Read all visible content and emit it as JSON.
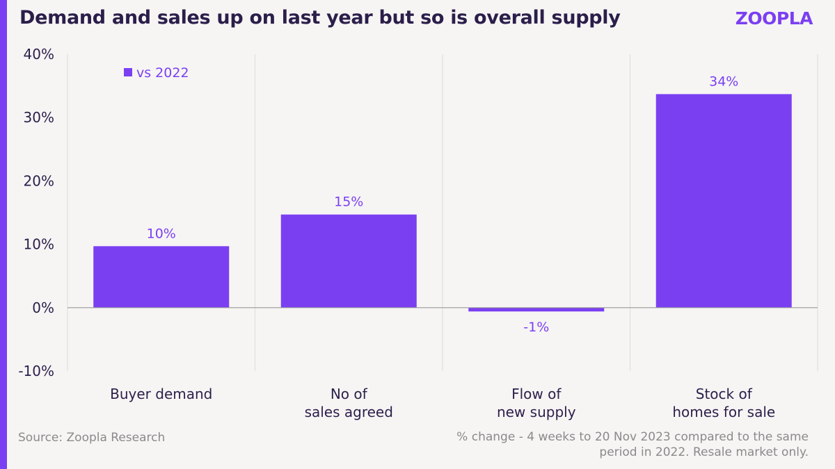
{
  "header": {
    "title": "Demand and sales up on last year but so is overall supply",
    "brand": "ZOOPLA"
  },
  "footer": {
    "source": "Source: Zoopla Research",
    "note": "% change - 4 weeks to 20 Nov 2023 compared to the same period in 2022. Resale market only."
  },
  "colors": {
    "accent": "#7b3ff2",
    "text": "#2b1e4a",
    "muted": "#8a8a8a",
    "background": "#f6f5f4"
  },
  "chart_data": {
    "type": "bar",
    "categories": [
      [
        "Buyer demand"
      ],
      [
        "No of",
        "sales agreed"
      ],
      [
        "Flow of",
        "new supply"
      ],
      [
        "Stock of",
        "homes for sale"
      ]
    ],
    "series": [
      {
        "name": "vs 2022",
        "values": [
          9.7,
          14.7,
          -0.6,
          33.7
        ],
        "labels": [
          "10%",
          "15%",
          "-1%",
          "34%"
        ]
      }
    ],
    "yticks": [
      "40%",
      "30%",
      "20%",
      "10%",
      "0%",
      "-10%"
    ],
    "ytick_values": [
      40,
      30,
      20,
      10,
      0,
      -10
    ],
    "ylim": [
      -10,
      40
    ],
    "grid": "vertical",
    "legend": "top-left"
  }
}
